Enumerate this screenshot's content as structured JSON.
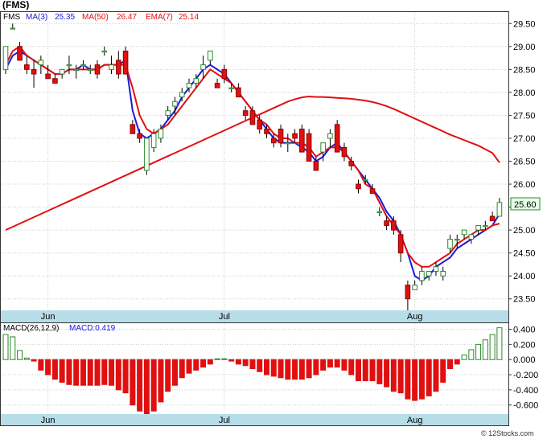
{
  "title": "(FMS)",
  "watermark": "© 12Stocks.com",
  "colors": {
    "up": "#2a8a2a",
    "down": "#e01010",
    "ma3": "#1a1adc",
    "ma50": "#e01010",
    "ema7": "#e01010",
    "axisband": "#b7dde8",
    "last_bg": "#e6ffe6"
  },
  "legend": {
    "symbol": "FMS",
    "ma3_label": "MA(3)",
    "ma3_value": "25.35",
    "ma50_label": "MA(50)",
    "ma50_value": "26.47",
    "ema7_label": "EMA(7)",
    "ema7_value": "25.14"
  },
  "last_price": "25.60",
  "macd_label": {
    "title": "MACD(26,12,9)",
    "value_text": "MACD:0.419"
  },
  "chart_data": [
    {
      "type": "candlestick",
      "ylim": [
        23.25,
        29.75
      ],
      "ticks": [
        23.5,
        24.0,
        24.5,
        25.0,
        25.5,
        26.0,
        26.5,
        27.0,
        27.5,
        28.0,
        28.5,
        29.0,
        29.5
      ],
      "tick_labels": [
        "23.50",
        "24.00",
        "24.50",
        "25.00",
        "25.50",
        "26.00",
        "26.50",
        "27.00",
        "27.50",
        "28.00",
        "28.50",
        "29.00",
        "29.50"
      ],
      "month_labels": [
        {
          "label": "Jun",
          "i": 6
        },
        {
          "label": "Jul",
          "i": 31
        },
        {
          "label": "Aug",
          "i": 58
        }
      ],
      "grid": true,
      "candles": [
        [
          28.5,
          29.0,
          28.4,
          29.0
        ],
        [
          29.4,
          29.5,
          29.4,
          29.4
        ],
        [
          29.0,
          29.1,
          28.7,
          28.7
        ],
        [
          28.6,
          28.8,
          28.4,
          28.5
        ],
        [
          28.5,
          28.7,
          28.1,
          28.4
        ],
        [
          28.6,
          28.8,
          28.4,
          28.7
        ],
        [
          28.4,
          28.6,
          28.3,
          28.3
        ],
        [
          28.3,
          28.4,
          28.2,
          28.2
        ],
        [
          28.4,
          28.5,
          28.3,
          28.5
        ],
        [
          28.6,
          28.8,
          28.4,
          28.6
        ],
        [
          28.5,
          28.6,
          28.3,
          28.5
        ],
        [
          28.6,
          28.7,
          28.5,
          28.6
        ],
        [
          28.5,
          28.6,
          28.4,
          28.5
        ],
        [
          28.6,
          28.7,
          28.3,
          28.4
        ],
        [
          28.9,
          29.0,
          28.8,
          28.9
        ],
        [
          28.5,
          28.8,
          28.4,
          28.6
        ],
        [
          28.7,
          28.9,
          28.3,
          28.4
        ],
        [
          28.9,
          29.0,
          28.4,
          28.4
        ],
        [
          27.3,
          27.4,
          27.1,
          27.1
        ],
        [
          27.1,
          27.2,
          26.9,
          27.0
        ],
        [
          26.3,
          27.0,
          26.2,
          27.0
        ],
        [
          26.8,
          27.2,
          26.7,
          27.1
        ],
        [
          27.0,
          27.3,
          26.9,
          27.2
        ],
        [
          27.5,
          27.7,
          27.4,
          27.6
        ],
        [
          27.7,
          27.9,
          27.5,
          27.8
        ],
        [
          27.9,
          28.1,
          27.8,
          28.0
        ],
        [
          28.1,
          28.3,
          28.0,
          28.2
        ],
        [
          28.2,
          28.4,
          28.1,
          28.3
        ],
        [
          28.5,
          28.8,
          28.3,
          28.6
        ],
        [
          28.7,
          28.9,
          28.6,
          28.9
        ],
        [
          28.2,
          28.3,
          28.1,
          28.1
        ],
        [
          28.5,
          28.6,
          28.2,
          28.3
        ],
        [
          28.1,
          28.2,
          28.0,
          28.1
        ],
        [
          28.1,
          28.2,
          27.9,
          27.9
        ],
        [
          27.6,
          27.7,
          27.4,
          27.5
        ],
        [
          27.6,
          27.7,
          27.3,
          27.3
        ],
        [
          27.4,
          27.5,
          27.1,
          27.2
        ],
        [
          27.2,
          27.3,
          27.0,
          27.1
        ],
        [
          27.0,
          27.1,
          26.8,
          26.9
        ],
        [
          27.2,
          27.3,
          26.8,
          26.9
        ],
        [
          26.9,
          27.1,
          26.7,
          26.9
        ],
        [
          27.1,
          27.2,
          26.9,
          27.0
        ],
        [
          27.2,
          27.3,
          26.7,
          26.7
        ],
        [
          27.1,
          27.2,
          26.5,
          26.5
        ],
        [
          26.5,
          26.6,
          26.3,
          26.3
        ],
        [
          26.7,
          26.9,
          26.5,
          26.9
        ],
        [
          27.0,
          27.2,
          26.8,
          27.1
        ],
        [
          27.3,
          27.4,
          26.7,
          26.7
        ],
        [
          26.8,
          26.9,
          26.5,
          26.6
        ],
        [
          26.5,
          26.6,
          26.3,
          26.4
        ],
        [
          26.0,
          26.1,
          25.8,
          25.9
        ],
        [
          26.1,
          26.2,
          26.0,
          26.1
        ],
        [
          25.9,
          26.0,
          25.8,
          25.8
        ],
        [
          25.4,
          25.5,
          25.3,
          25.4
        ],
        [
          25.2,
          25.3,
          25.0,
          25.1
        ],
        [
          25.2,
          25.3,
          24.9,
          25.0
        ],
        [
          24.9,
          25.0,
          24.3,
          24.5
        ],
        [
          23.8,
          23.9,
          23.2,
          23.5
        ],
        [
          23.7,
          23.9,
          23.7,
          23.8
        ],
        [
          23.9,
          24.2,
          23.8,
          24.1
        ],
        [
          24.0,
          24.1,
          23.9,
          24.1
        ],
        [
          24.1,
          24.3,
          24.0,
          24.2
        ],
        [
          24.0,
          24.2,
          23.9,
          24.1
        ],
        [
          24.6,
          24.9,
          24.5,
          24.8
        ],
        [
          24.8,
          24.9,
          24.6,
          24.8
        ],
        [
          24.9,
          25.0,
          24.8,
          25.0
        ],
        [
          24.8,
          24.9,
          24.7,
          24.9
        ],
        [
          25.0,
          25.1,
          24.9,
          25.1
        ],
        [
          25.1,
          25.2,
          25.0,
          25.1
        ],
        [
          25.3,
          25.4,
          25.2,
          25.2
        ],
        [
          25.3,
          25.7,
          25.3,
          25.6
        ]
      ],
      "series": [
        {
          "name": "MA(3)",
          "values": [
            28.5,
            28.8,
            28.9,
            28.8,
            28.7,
            28.6,
            28.5,
            28.4,
            28.4,
            28.5,
            28.5,
            28.6,
            28.5,
            28.5,
            28.6,
            28.6,
            28.6,
            28.7,
            27.6,
            27.1,
            27.0,
            27.1,
            27.2,
            27.4,
            27.6,
            27.9,
            28.1,
            28.3,
            28.5,
            28.6,
            28.5,
            28.4,
            28.2,
            28.0,
            27.8,
            27.6,
            27.4,
            27.2,
            27.0,
            26.9,
            26.9,
            26.9,
            26.8,
            26.7,
            26.5,
            26.6,
            26.8,
            26.9,
            26.7,
            26.5,
            26.3,
            26.1,
            25.9,
            25.7,
            25.4,
            25.2,
            24.9,
            24.5,
            24.0,
            23.9,
            24.0,
            24.2,
            24.3,
            24.4,
            24.6,
            24.7,
            24.8,
            24.9,
            25.0,
            25.1,
            25.35
          ]
        },
        {
          "name": "MA(50)",
          "values": [
            25.0,
            25.07,
            25.14,
            25.21,
            25.28,
            25.35,
            25.42,
            25.49,
            25.56,
            25.63,
            25.7,
            25.77,
            25.84,
            25.91,
            25.98,
            26.05,
            26.12,
            26.19,
            26.26,
            26.33,
            26.4,
            26.47,
            26.54,
            26.61,
            26.68,
            26.75,
            26.82,
            26.89,
            26.96,
            27.03,
            27.1,
            27.17,
            27.24,
            27.31,
            27.38,
            27.45,
            27.52,
            27.59,
            27.66,
            27.73,
            27.8,
            27.85,
            27.89,
            27.91,
            27.9,
            27.9,
            27.89,
            27.88,
            27.87,
            27.86,
            27.84,
            27.82,
            27.79,
            27.75,
            27.7,
            27.64,
            27.57,
            27.5,
            27.43,
            27.36,
            27.29,
            27.22,
            27.15,
            27.08,
            27.02,
            26.96,
            26.9,
            26.84,
            26.76,
            26.68,
            26.47
          ]
        },
        {
          "name": "EMA(7)",
          "values": [
            28.6,
            28.9,
            29.0,
            28.8,
            28.7,
            28.6,
            28.5,
            28.4,
            28.4,
            28.5,
            28.5,
            28.5,
            28.5,
            28.5,
            28.6,
            28.6,
            28.6,
            28.6,
            28.1,
            27.5,
            27.2,
            27.1,
            27.2,
            27.3,
            27.5,
            27.7,
            27.9,
            28.1,
            28.3,
            28.5,
            28.4,
            28.3,
            28.2,
            28.0,
            27.8,
            27.6,
            27.4,
            27.3,
            27.1,
            27.0,
            27.0,
            26.9,
            26.9,
            26.8,
            26.6,
            26.7,
            26.8,
            26.8,
            26.7,
            26.5,
            26.3,
            26.0,
            25.9,
            25.6,
            25.3,
            25.1,
            24.9,
            24.5,
            24.3,
            24.2,
            24.2,
            24.3,
            24.4,
            24.5,
            24.7,
            24.8,
            24.9,
            25.0,
            25.0,
            25.1,
            25.14
          ]
        }
      ]
    },
    {
      "type": "bar",
      "title": "MACD(26,12,9)",
      "ylim": [
        -0.72,
        0.48
      ],
      "ticks": [
        0.4,
        0.2,
        0.0,
        -0.2,
        -0.4,
        -0.6
      ],
      "tick_labels": [
        "0.400",
        "0.200",
        "0.000",
        "-0.200",
        "-0.400",
        "-0.600"
      ],
      "values": [
        0.33,
        0.3,
        0.12,
        0.02,
        -0.02,
        -0.14,
        -0.2,
        -0.26,
        -0.3,
        -0.33,
        -0.34,
        -0.34,
        -0.34,
        -0.34,
        -0.33,
        -0.34,
        -0.4,
        -0.44,
        -0.6,
        -0.68,
        -0.72,
        -0.68,
        -0.56,
        -0.42,
        -0.34,
        -0.24,
        -0.18,
        -0.14,
        -0.1,
        -0.06,
        0.01,
        0.01,
        -0.02,
        -0.06,
        -0.08,
        -0.12,
        -0.16,
        -0.2,
        -0.22,
        -0.24,
        -0.26,
        -0.26,
        -0.26,
        -0.24,
        -0.2,
        -0.14,
        -0.1,
        -0.1,
        -0.14,
        -0.2,
        -0.28,
        -0.28,
        -0.28,
        -0.32,
        -0.36,
        -0.42,
        -0.44,
        -0.52,
        -0.54,
        -0.52,
        -0.48,
        -0.42,
        -0.3,
        -0.12,
        -0.06,
        0.06,
        0.13,
        0.2,
        0.26,
        0.33,
        0.42
      ]
    }
  ]
}
